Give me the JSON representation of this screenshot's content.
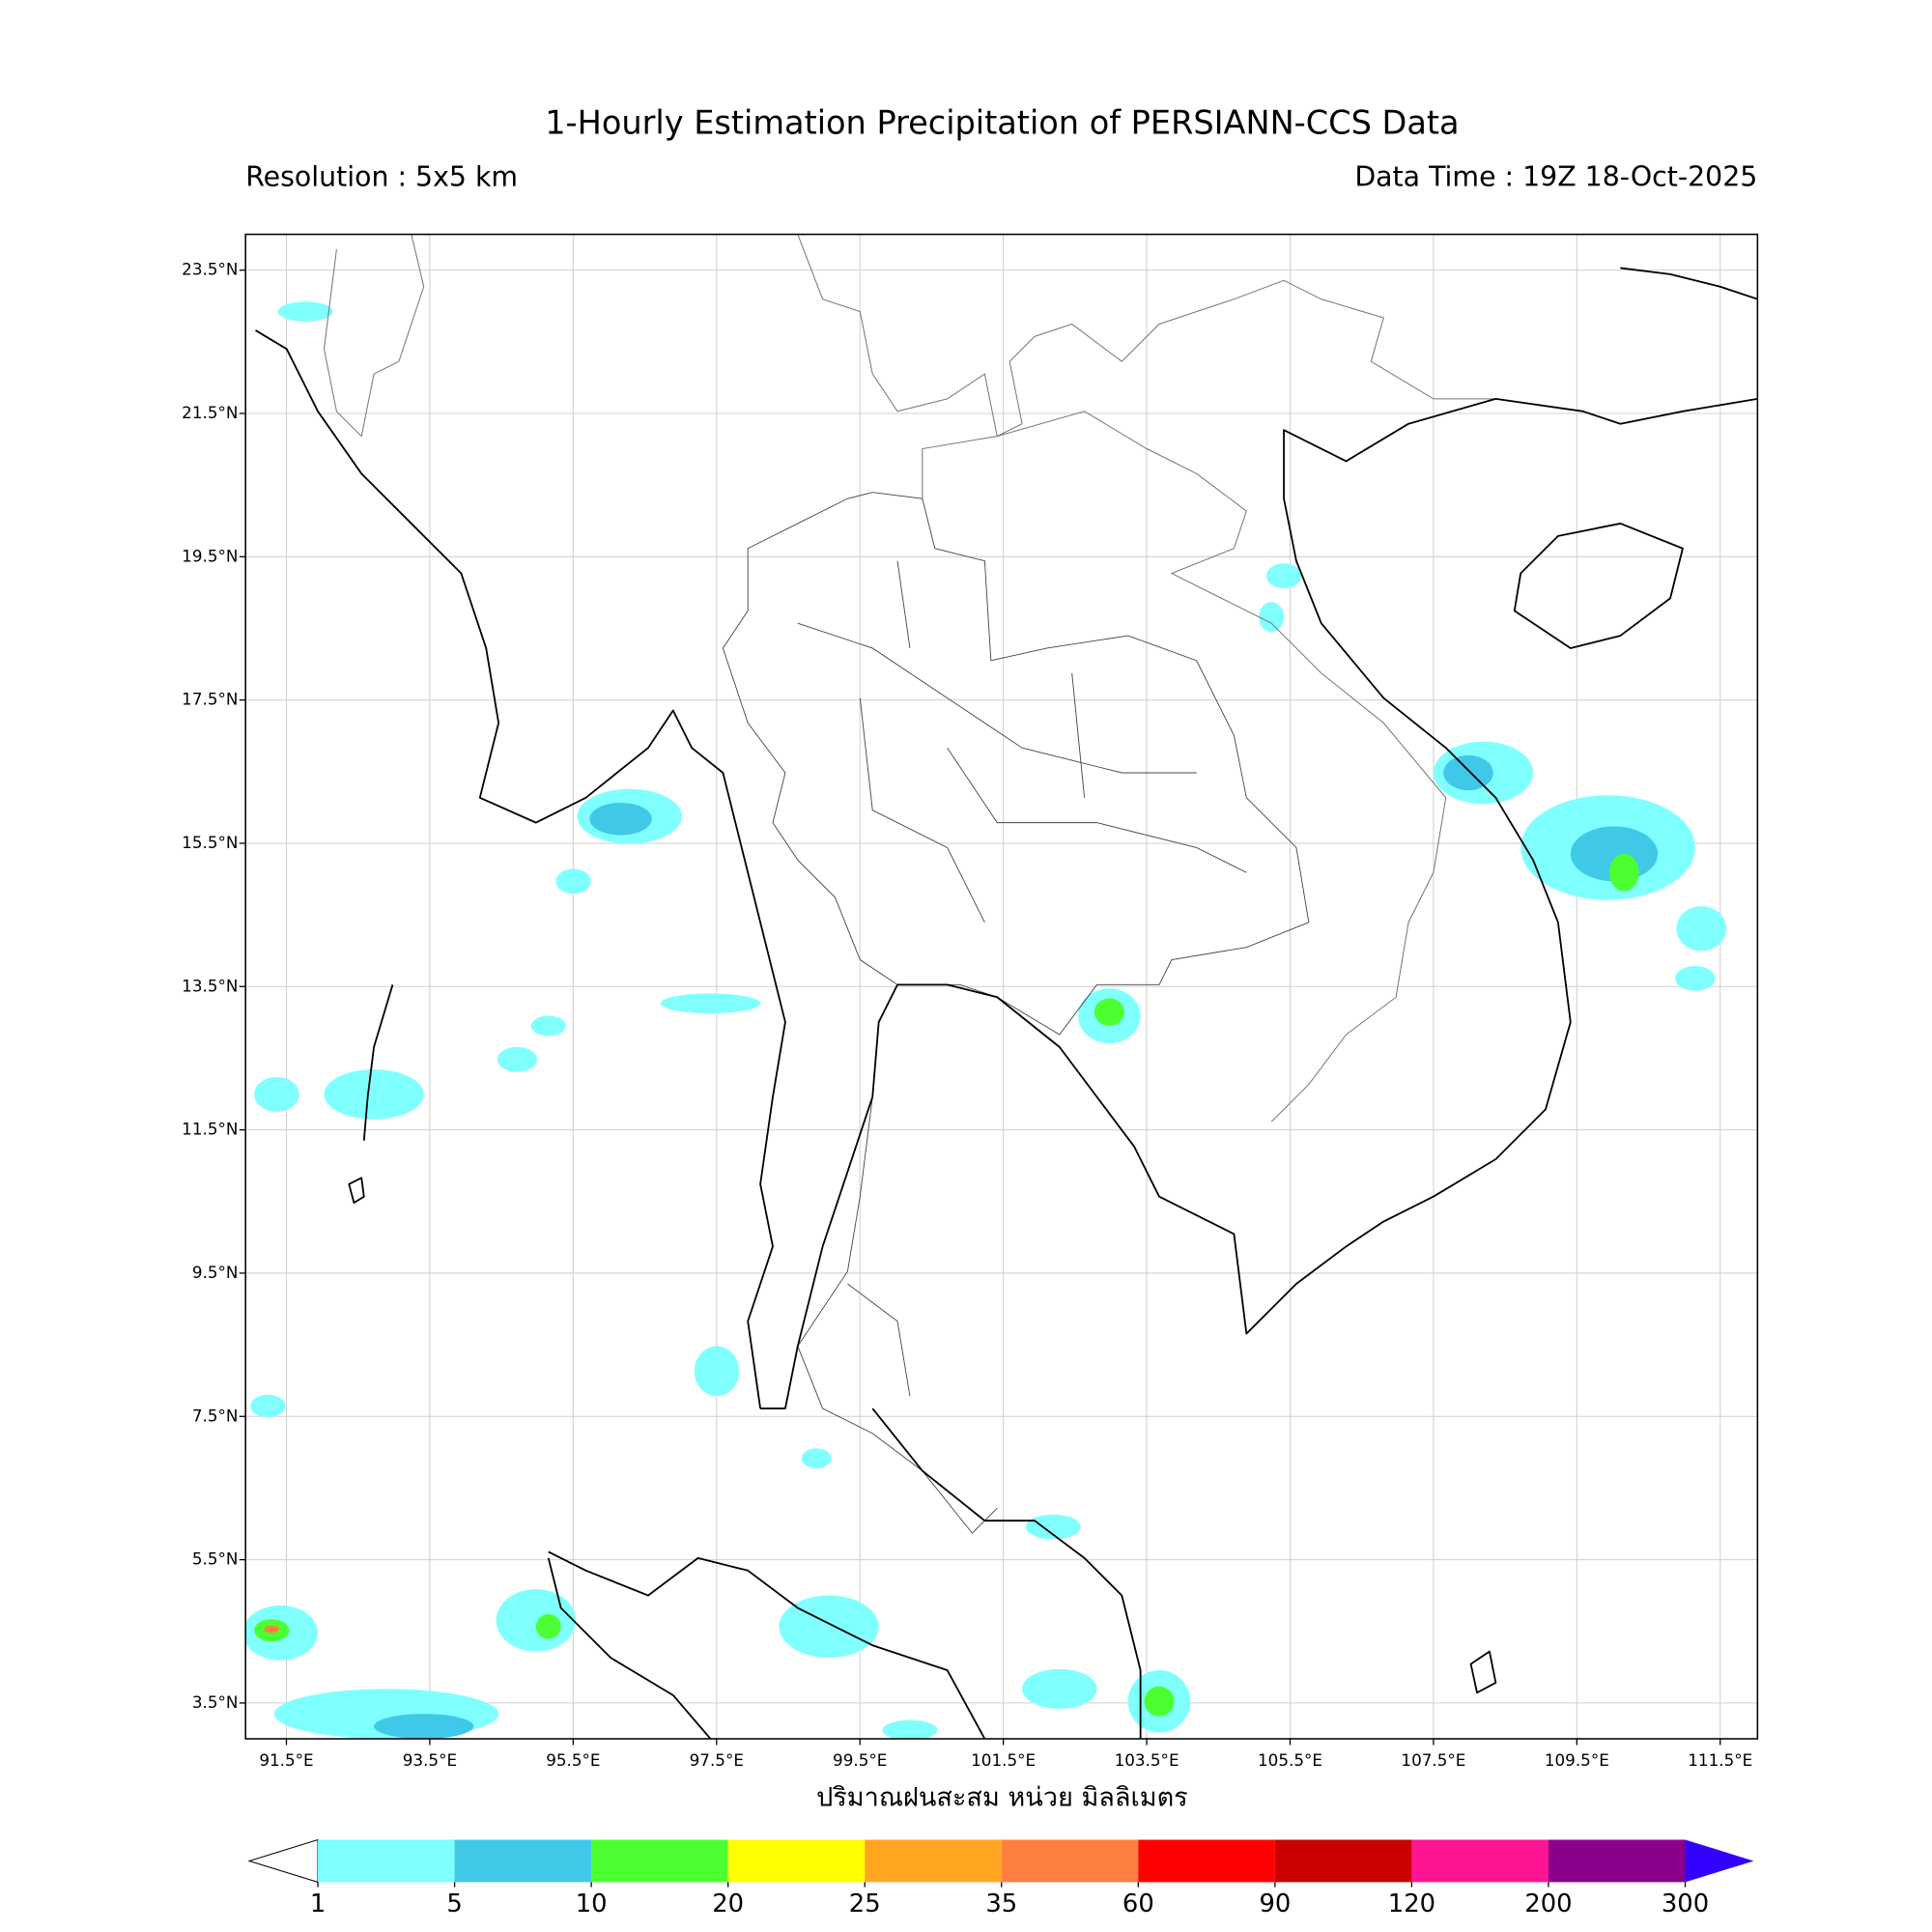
{
  "header": {
    "title": "1-Hourly Estimation Precipitation of PERSIANN-CCS Data",
    "resolution": "Resolution : 5x5 km",
    "data_time": "Data Time : 19Z 18-Oct-2025"
  },
  "map": {
    "xlim": [
      90.93,
      112.02
    ],
    "ylim": [
      3.0,
      24.0
    ],
    "xticks": [
      {
        "value": 91.5,
        "label": "91.5°E"
      },
      {
        "value": 93.5,
        "label": "93.5°E"
      },
      {
        "value": 95.5,
        "label": "95.5°E"
      },
      {
        "value": 97.5,
        "label": "97.5°E"
      },
      {
        "value": 99.5,
        "label": "99.5°E"
      },
      {
        "value": 101.5,
        "label": "101.5°E"
      },
      {
        "value": 103.5,
        "label": "103.5°E"
      },
      {
        "value": 105.5,
        "label": "105.5°E"
      },
      {
        "value": 107.5,
        "label": "107.5°E"
      },
      {
        "value": 109.5,
        "label": "109.5°E"
      },
      {
        "value": 111.5,
        "label": "111.5°E"
      }
    ],
    "yticks": [
      {
        "value": 3.5,
        "label": "3.5°N"
      },
      {
        "value": 5.5,
        "label": "5.5°N"
      },
      {
        "value": 7.5,
        "label": "7.5°N"
      },
      {
        "value": 9.5,
        "label": "9.5°N"
      },
      {
        "value": 11.5,
        "label": "11.5°N"
      },
      {
        "value": 13.5,
        "label": "13.5°N"
      },
      {
        "value": 15.5,
        "label": "15.5°N"
      },
      {
        "value": 17.5,
        "label": "17.5°N"
      },
      {
        "value": 19.5,
        "label": "19.5°N"
      },
      {
        "value": 21.5,
        "label": "21.5°N"
      },
      {
        "value": 23.5,
        "label": "23.5°N"
      }
    ],
    "grid": true,
    "x_label": "ปริมาณฝนสะสม หน่วย มิลลิเมตร"
  },
  "colorbar": {
    "levels": [
      1,
      5,
      10,
      20,
      25,
      35,
      60,
      90,
      120,
      200,
      300
    ],
    "colors": [
      "#80ffff",
      "#40c8e8",
      "#4cff30",
      "#ffff00",
      "#ffa520",
      "#ff7f40",
      "#ff0000",
      "#cc0000",
      "#ff1493",
      "#8b008b"
    ],
    "under_color": "#ffffff",
    "over_color": "#3300ff"
  }
}
